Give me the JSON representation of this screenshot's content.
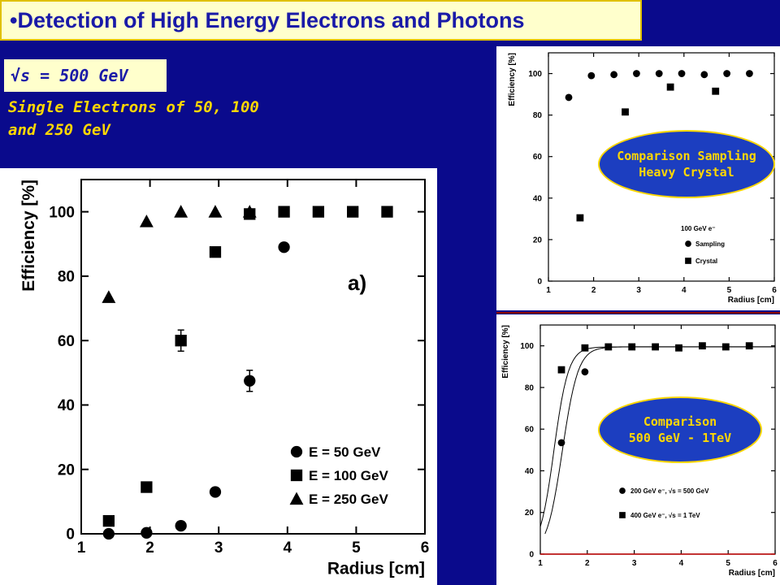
{
  "header": {
    "bullet": "•",
    "title": "Detection of High Energy Electrons and Photons"
  },
  "energy_badge": "√s = 500 GeV",
  "subtitle": {
    "line1": "Single Electrons of 50, 100",
    "line2": "and 250 GeV"
  },
  "annotations": {
    "top_line1": "Comparison Sampling",
    "top_line2": "Heavy Crystal",
    "bottom_line1": "Comparison",
    "bottom_line2": "500 GeV - 1TeV"
  },
  "chart_data": [
    {
      "type": "scatter",
      "xlabel": "Radius [cm]",
      "ylabel": "Efficiency [%]",
      "xlim": [
        1,
        6
      ],
      "ylim": [
        0,
        110
      ],
      "xticks": [
        1,
        2,
        3,
        4,
        5,
        6
      ],
      "yticks": [
        0,
        20,
        40,
        60,
        80,
        100
      ],
      "panel_label": "a)",
      "legend_position": "bottom-right",
      "series": [
        {
          "name": "E = 50 GeV",
          "marker": "circle",
          "x": [
            1.4,
            1.95,
            2.45,
            2.95,
            3.45,
            3.95
          ],
          "y": [
            0,
            0.3,
            2.5,
            13,
            47.5,
            89
          ]
        },
        {
          "name": "E = 100 GeV",
          "marker": "square",
          "x": [
            1.4,
            1.95,
            2.45,
            2.95,
            3.45,
            3.95,
            4.45,
            4.95,
            5.45
          ],
          "y": [
            4,
            14.5,
            60,
            87.5,
            99.3,
            100,
            100,
            100,
            100
          ]
        },
        {
          "name": "E = 250 GeV",
          "marker": "triangle",
          "x": [
            1.4,
            1.95,
            2.45,
            2.95,
            3.45
          ],
          "y": [
            73.5,
            97,
            100,
            100,
            100
          ]
        }
      ]
    },
    {
      "type": "scatter",
      "xlabel": "Radius [cm]",
      "ylabel": "Efficiency [%]",
      "xlim": [
        1,
        6
      ],
      "ylim": [
        0,
        110
      ],
      "xticks": [
        1,
        2,
        3,
        4,
        5,
        6
      ],
      "yticks": [
        0,
        20,
        40,
        60,
        80,
        100
      ],
      "legend_title": "100 GeV e⁻",
      "legend_position": "bottom-right",
      "series": [
        {
          "name": "Sampling",
          "marker": "circle",
          "x": [
            1.45,
            1.95,
            2.45,
            2.95,
            3.45,
            3.95,
            4.45,
            4.95,
            5.45
          ],
          "y": [
            88.5,
            99,
            99.5,
            100,
            100,
            100,
            99.5,
            100,
            100
          ]
        },
        {
          "name": "Crystal",
          "marker": "square",
          "x": [
            1.7,
            2.7,
            3.7,
            4.7
          ],
          "y": [
            30.5,
            81.5,
            93.5,
            91.5
          ]
        }
      ]
    },
    {
      "type": "scatter",
      "xlabel": "Radius [cm]",
      "ylabel": "Efficiency [%]",
      "xlim": [
        1,
        6
      ],
      "ylim": [
        0,
        110
      ],
      "xticks": [
        1,
        2,
        3,
        4,
        5,
        6
      ],
      "yticks": [
        0,
        20,
        40,
        60,
        80,
        100
      ],
      "legend_position": "bottom-right",
      "series": [
        {
          "name": "200 GeV e⁻, √s = 500 GeV",
          "marker": "circle",
          "x": [
            1.45,
            1.95
          ],
          "y": [
            53.5,
            87.5
          ]
        },
        {
          "name": "400 GeV e⁻, √s = 1 TeV",
          "marker": "square",
          "x": [
            1.45,
            1.95,
            2.45,
            2.95,
            3.45,
            3.95,
            4.45,
            4.95,
            5.45
          ],
          "y": [
            88.5,
            99,
            99.5,
            99.5,
            99.5,
            99,
            100,
            99.5,
            100
          ]
        }
      ]
    }
  ]
}
